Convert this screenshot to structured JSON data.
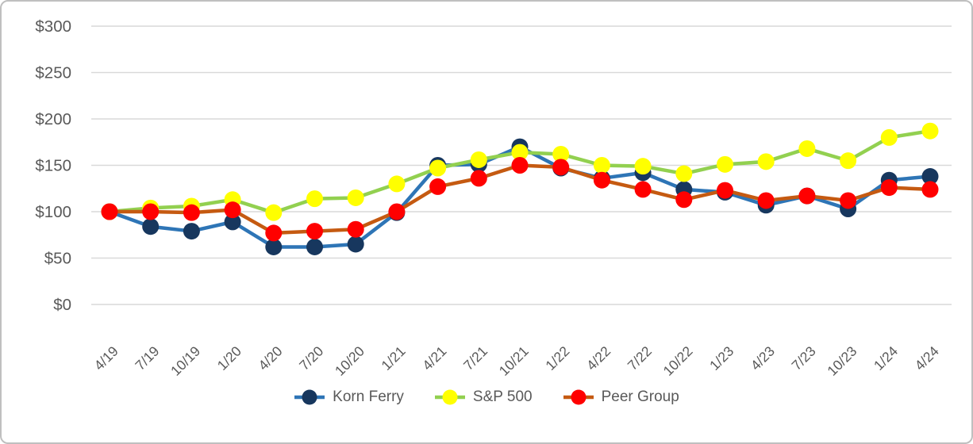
{
  "chart_data": {
    "type": "line",
    "title": "",
    "xlabel": "",
    "ylabel": "",
    "categories": [
      "4/19",
      "7/19",
      "10/19",
      "1/20",
      "4/20",
      "7/20",
      "10/20",
      "1/21",
      "4/21",
      "7/21",
      "10/21",
      "1/22",
      "4/22",
      "7/22",
      "10/22",
      "1/23",
      "4/23",
      "7/23",
      "10/23",
      "1/24",
      "4/24"
    ],
    "series": [
      {
        "name": "Korn Ferry",
        "line_color": "#2e75b6",
        "marker_color": "#17375e",
        "values": [
          100,
          84,
          79,
          89,
          62,
          62,
          65,
          99,
          150,
          151,
          170,
          147,
          136,
          142,
          124,
          121,
          107,
          117,
          103,
          134,
          138
        ]
      },
      {
        "name": "S&P 500",
        "line_color": "#92d050",
        "marker_color": "#ffff00",
        "values": [
          100,
          104,
          106,
          113,
          99,
          114,
          115,
          130,
          147,
          156,
          164,
          162,
          150,
          149,
          141,
          151,
          154,
          168,
          155,
          180,
          187
        ]
      },
      {
        "name": "Peer Group",
        "line_color": "#c55a11",
        "marker_color": "#ff0000",
        "values": [
          100,
          100,
          99,
          102,
          77,
          79,
          81,
          100,
          127,
          136,
          150,
          148,
          134,
          124,
          113,
          123,
          112,
          117,
          112,
          126,
          124
        ]
      }
    ],
    "y_axis": {
      "min": 0,
      "max": 300,
      "step": 50,
      "prefix": "$",
      "tick_labels": [
        "$0",
        "$50",
        "$100",
        "$150",
        "$200",
        "$250",
        "$300"
      ]
    },
    "grid": true,
    "legend_position": "bottom"
  },
  "styles": {
    "gridline_color": "#d9d9d9",
    "axis_label_color": "#595959",
    "legend_text_color": "#595959",
    "frame_border_color": "#bfbfbf",
    "background_color": "#ffffff"
  }
}
